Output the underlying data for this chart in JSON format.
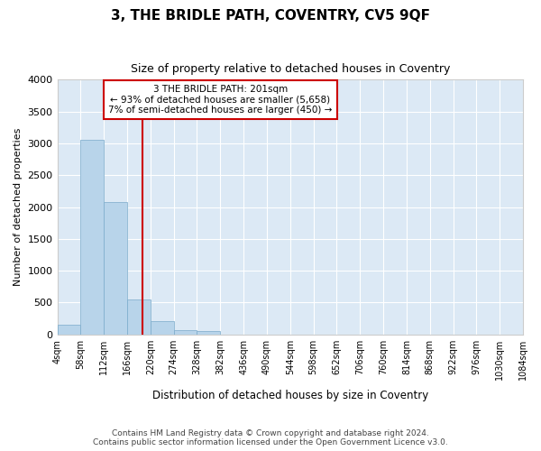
{
  "title": "3, THE BRIDLE PATH, COVENTRY, CV5 9QF",
  "subtitle": "Size of property relative to detached houses in Coventry",
  "xlabel": "Distribution of detached houses by size in Coventry",
  "ylabel": "Number of detached properties",
  "bar_color": "#b8d4ea",
  "bar_edge_color": "#7aaacb",
  "bg_color": "#dce9f5",
  "grid_color": "#ffffff",
  "property_line_x": 201,
  "property_label": "3 THE BRIDLE PATH: 201sqm",
  "annotation_line1": "← 93% of detached houses are smaller (5,658)",
  "annotation_line2": "7% of semi-detached houses are larger (450) →",
  "annotation_box_color": "#ffffff",
  "annotation_border_color": "#cc0000",
  "property_line_color": "#cc0000",
  "bin_edges": [
    4,
    58,
    112,
    166,
    220,
    274,
    328,
    382,
    436,
    490,
    544,
    598,
    652,
    706,
    760,
    814,
    868,
    922,
    976,
    1030,
    1084
  ],
  "bin_values": [
    150,
    3050,
    2075,
    555,
    210,
    65,
    50,
    0,
    0,
    0,
    0,
    0,
    0,
    0,
    0,
    0,
    0,
    0,
    0,
    0
  ],
  "ylim": [
    0,
    4000
  ],
  "yticks": [
    0,
    500,
    1000,
    1500,
    2000,
    2500,
    3000,
    3500,
    4000
  ],
  "tick_labels": [
    "4sqm",
    "58sqm",
    "112sqm",
    "166sqm",
    "220sqm",
    "274sqm",
    "328sqm",
    "382sqm",
    "436sqm",
    "490sqm",
    "544sqm",
    "598sqm",
    "652sqm",
    "706sqm",
    "760sqm",
    "814sqm",
    "868sqm",
    "922sqm",
    "976sqm",
    "1030sqm",
    "1084sqm"
  ],
  "footer_line1": "Contains HM Land Registry data © Crown copyright and database right 2024.",
  "footer_line2": "Contains public sector information licensed under the Open Government Licence v3.0.",
  "fig_bg_color": "#ffffff"
}
